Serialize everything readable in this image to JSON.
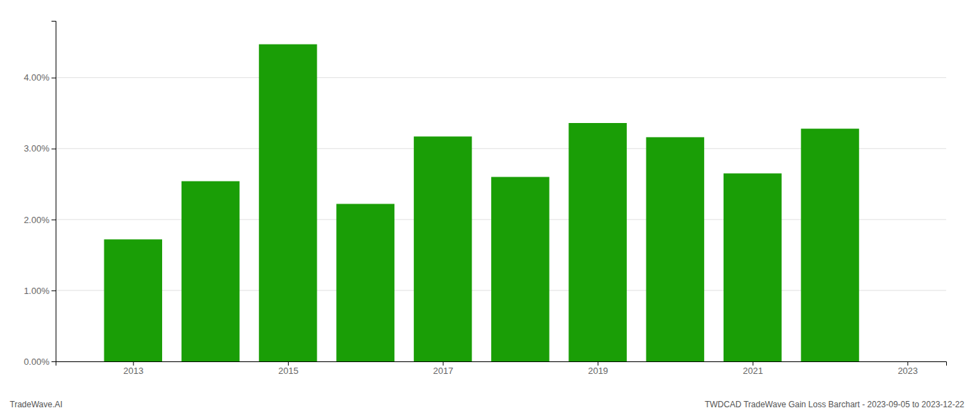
{
  "chart_data": {
    "type": "bar",
    "x": [
      2013,
      2014,
      2015,
      2016,
      2017,
      2018,
      2019,
      2020,
      2021,
      2022
    ],
    "values": [
      0.0172,
      0.0254,
      0.0447,
      0.0222,
      0.0317,
      0.026,
      0.0336,
      0.0316,
      0.0265,
      0.0328
    ],
    "color": "#1a9e06",
    "xlim": [
      2012.0,
      2023.5
    ],
    "xticks": [
      2013,
      2015,
      2017,
      2019,
      2021,
      2023
    ],
    "ylim": [
      0,
      0.048
    ],
    "yticks": [
      {
        "value": 0.0,
        "label": "0.00%"
      },
      {
        "value": 0.01,
        "label": "1.00%"
      },
      {
        "value": 0.02,
        "label": "2.00%"
      },
      {
        "value": 0.03,
        "label": "3.00%"
      },
      {
        "value": 0.04,
        "label": "4.00%"
      }
    ],
    "grid": true,
    "annotations": [
      "TradeWave.AI",
      "TWDCAD TradeWave Gain Loss Barchart - 2023-09-05 to 2023-12-22"
    ]
  }
}
